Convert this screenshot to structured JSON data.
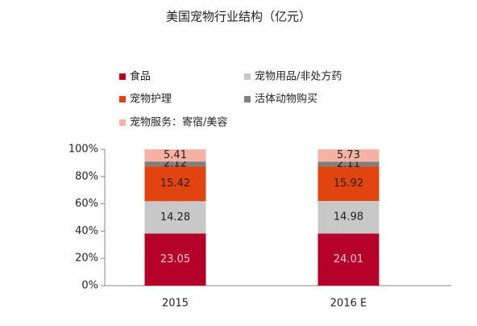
{
  "chart_data": {
    "type": "bar",
    "stacking": "percent",
    "title": "美国宠物行业结构（亿元）",
    "categories": [
      "2015",
      "2016 E"
    ],
    "series": [
      {
        "name": "食品",
        "color": "#b5002a",
        "values": [
          23.05,
          24.01
        ]
      },
      {
        "name": "宠物用品/非处方药",
        "color": "#c8c8c8",
        "values": [
          14.28,
          14.98
        ]
      },
      {
        "name": "宠物护理",
        "color": "#e2440f",
        "values": [
          15.42,
          15.92
        ]
      },
      {
        "name": "活体动物购买",
        "color": "#7f7f7f",
        "values": [
          2.12,
          2.11
        ]
      },
      {
        "name": "宠物服务：寄宿/美容",
        "color": "#f6b2a2",
        "values": [
          5.41,
          5.73
        ]
      }
    ],
    "ylim": [
      0,
      100
    ],
    "yticks": [
      {
        "value": 0,
        "label": "0%"
      },
      {
        "value": 20,
        "label": "20%"
      },
      {
        "value": 40,
        "label": "40%"
      },
      {
        "value": 60,
        "label": "60%"
      },
      {
        "value": 80,
        "label": "80%"
      },
      {
        "value": 100,
        "label": "100%"
      }
    ],
    "grid": false
  }
}
